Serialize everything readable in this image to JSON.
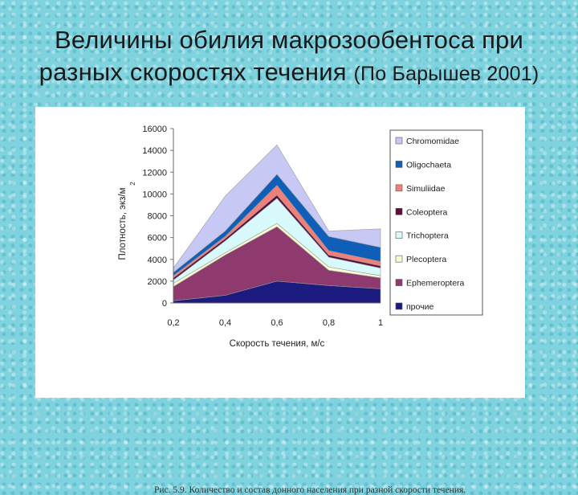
{
  "title": {
    "line1": "Величины обилия макрозообентоса при",
    "line2_main": "разных скоростях течения ",
    "line2_small": "(По Барышев 2001)"
  },
  "caption": "Рис. 5.9. Количество и состав донного населения при разной скорости течения.",
  "chart_data": {
    "type": "area",
    "stacked": true,
    "x": [
      "0,2",
      "0,4",
      "0,6",
      "0,8",
      "1"
    ],
    "xlabel": "Скорость течения, м/с",
    "ylabel": "Плотность, экз/м",
    "ylabel_superscript": "2",
    "ylim": [
      0,
      16000
    ],
    "yticks": [
      0,
      2000,
      4000,
      6000,
      8000,
      10000,
      12000,
      14000,
      16000
    ],
    "legend_position": "right",
    "series": [
      {
        "name": "прочие",
        "color": "#1c1c80",
        "values": [
          200,
          700,
          2000,
          1600,
          1300
        ]
      },
      {
        "name": "Ephemeroptera",
        "color": "#8e3a6e",
        "values": [
          1300,
          3700,
          5000,
          1400,
          1000
        ]
      },
      {
        "name": "Plecoptera",
        "color": "#fafcd2",
        "values": [
          300,
          200,
          300,
          300,
          200
        ]
      },
      {
        "name": "Trichoptera",
        "color": "#d8fafc",
        "values": [
          300,
          1100,
          2300,
          900,
          700
        ]
      },
      {
        "name": "Coleoptera",
        "color": "#5a0c3a",
        "values": [
          200,
          200,
          300,
          200,
          200
        ]
      },
      {
        "name": "Simuliidae",
        "color": "#f07f7a",
        "values": [
          200,
          200,
          900,
          400,
          400
        ]
      },
      {
        "name": "Oligochaeta",
        "color": "#0f5fb8",
        "values": [
          300,
          500,
          1000,
          1300,
          1300
        ]
      },
      {
        "name": "Chromomidae",
        "color": "#c8c8f4",
        "values": [
          400,
          3200,
          2700,
          500,
          1700
        ]
      }
    ]
  }
}
